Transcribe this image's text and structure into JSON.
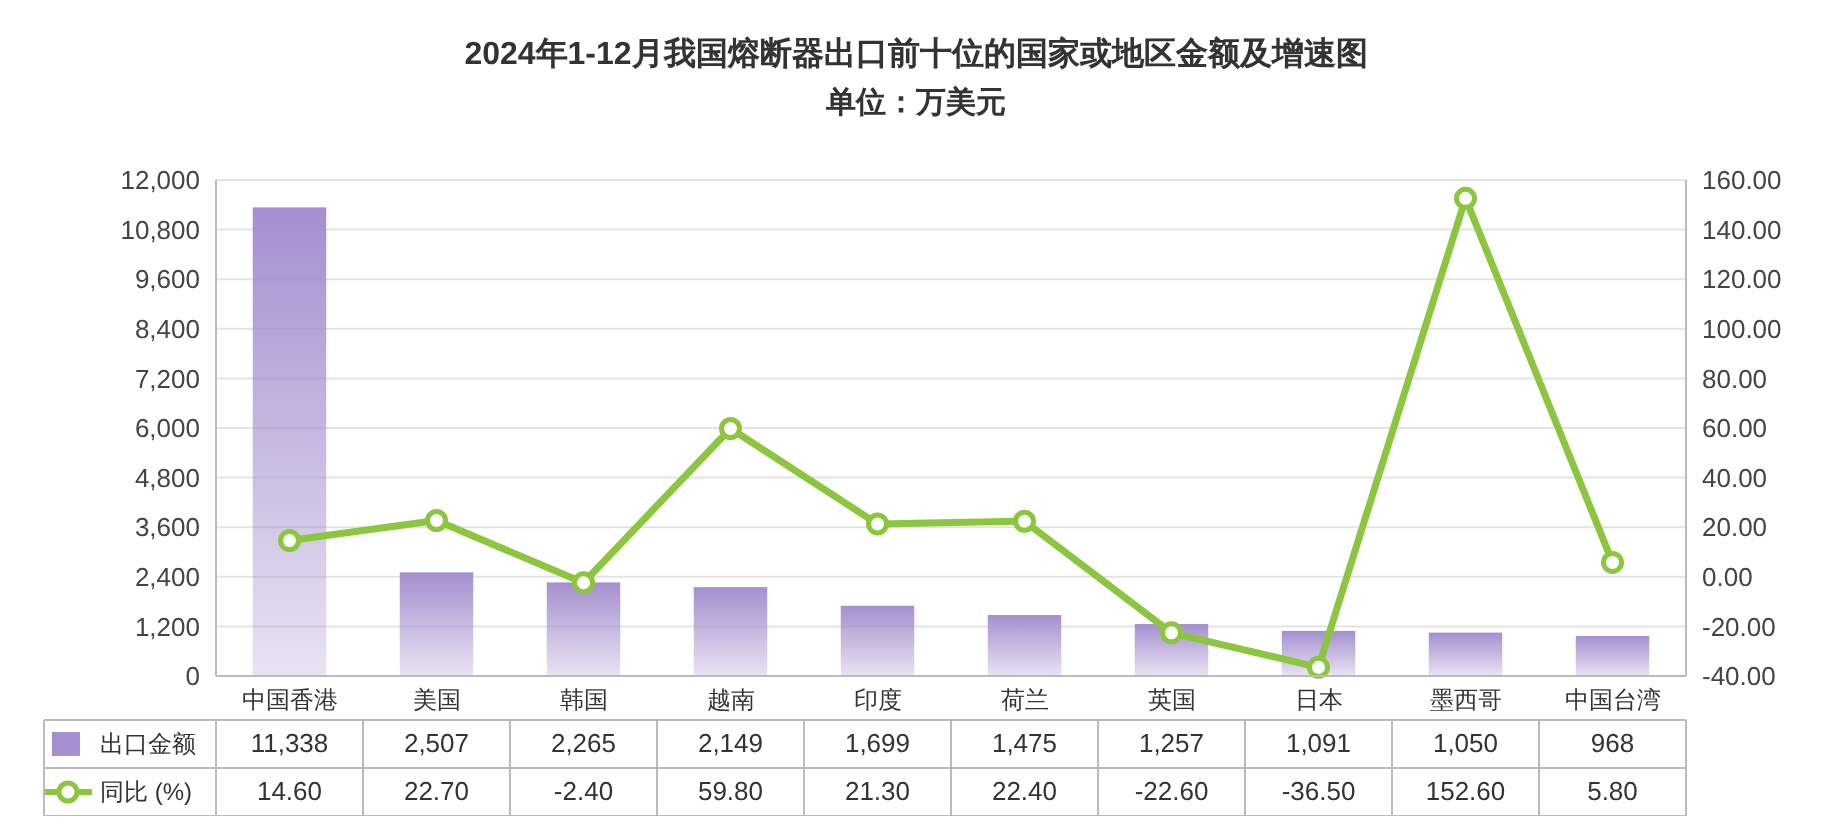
{
  "chart_data": {
    "type": "bar",
    "title": "2024年1-12月我国熔断器出口前十位的国家或地区金额及增速图",
    "subtitle": "单位：万美元",
    "categories": [
      "中国香港",
      "美国",
      "韩国",
      "越南",
      "印度",
      "荷兰",
      "英国",
      "日本",
      "墨西哥",
      "中国台湾"
    ],
    "series": [
      {
        "name": "出口金额",
        "color": "#a58fcf",
        "values": [
          11338,
          2507,
          2265,
          2149,
          1699,
          1475,
          1257,
          1091,
          1050,
          968
        ],
        "value_labels": [
          "11,338",
          "2,507",
          "2,265",
          "2,149",
          "1,699",
          "1,475",
          "1,257",
          "1,091",
          "1,050",
          "968"
        ]
      },
      {
        "name": "同比 (%)",
        "type": "line",
        "axis": "y2",
        "color": "#8cc63f",
        "marker": "circle",
        "values": [
          14.6,
          22.7,
          -2.4,
          59.8,
          21.3,
          22.4,
          -22.6,
          -36.5,
          152.6,
          5.8
        ],
        "value_labels": [
          "14.60",
          "22.70",
          "-2.40",
          "59.80",
          "21.30",
          "22.40",
          "-22.60",
          "-36.50",
          "152.60",
          "5.80"
        ]
      }
    ],
    "ylim": [
      0,
      12000
    ],
    "yticks": [
      {
        "value": 0,
        "label": "0"
      },
      {
        "value": 1200,
        "label": "1,200"
      },
      {
        "value": 2400,
        "label": "2,400"
      },
      {
        "value": 3600,
        "label": "3,600"
      },
      {
        "value": 4800,
        "label": "4,800"
      },
      {
        "value": 6000,
        "label": "6,000"
      },
      {
        "value": 7200,
        "label": "7,200"
      },
      {
        "value": 8400,
        "label": "8,400"
      },
      {
        "value": 9600,
        "label": "9,600"
      },
      {
        "value": 10800,
        "label": "10,800"
      },
      {
        "value": 12000,
        "label": "12,000"
      }
    ],
    "y2lim": [
      -40,
      160
    ],
    "y2ticks": [
      {
        "value": -40,
        "label": "-40.00"
      },
      {
        "value": -20,
        "label": "-20.00"
      },
      {
        "value": 0,
        "label": "0.00"
      },
      {
        "value": 20,
        "label": "20.00"
      },
      {
        "value": 40,
        "label": "40.00"
      },
      {
        "value": 60,
        "label": "60.00"
      },
      {
        "value": 80,
        "label": "80.00"
      },
      {
        "value": 100,
        "label": "100.00"
      },
      {
        "value": 120,
        "label": "120.00"
      },
      {
        "value": 140,
        "label": "140.00"
      },
      {
        "value": 160,
        "label": "160.00"
      }
    ],
    "grid": "y",
    "legend": "bottom"
  }
}
